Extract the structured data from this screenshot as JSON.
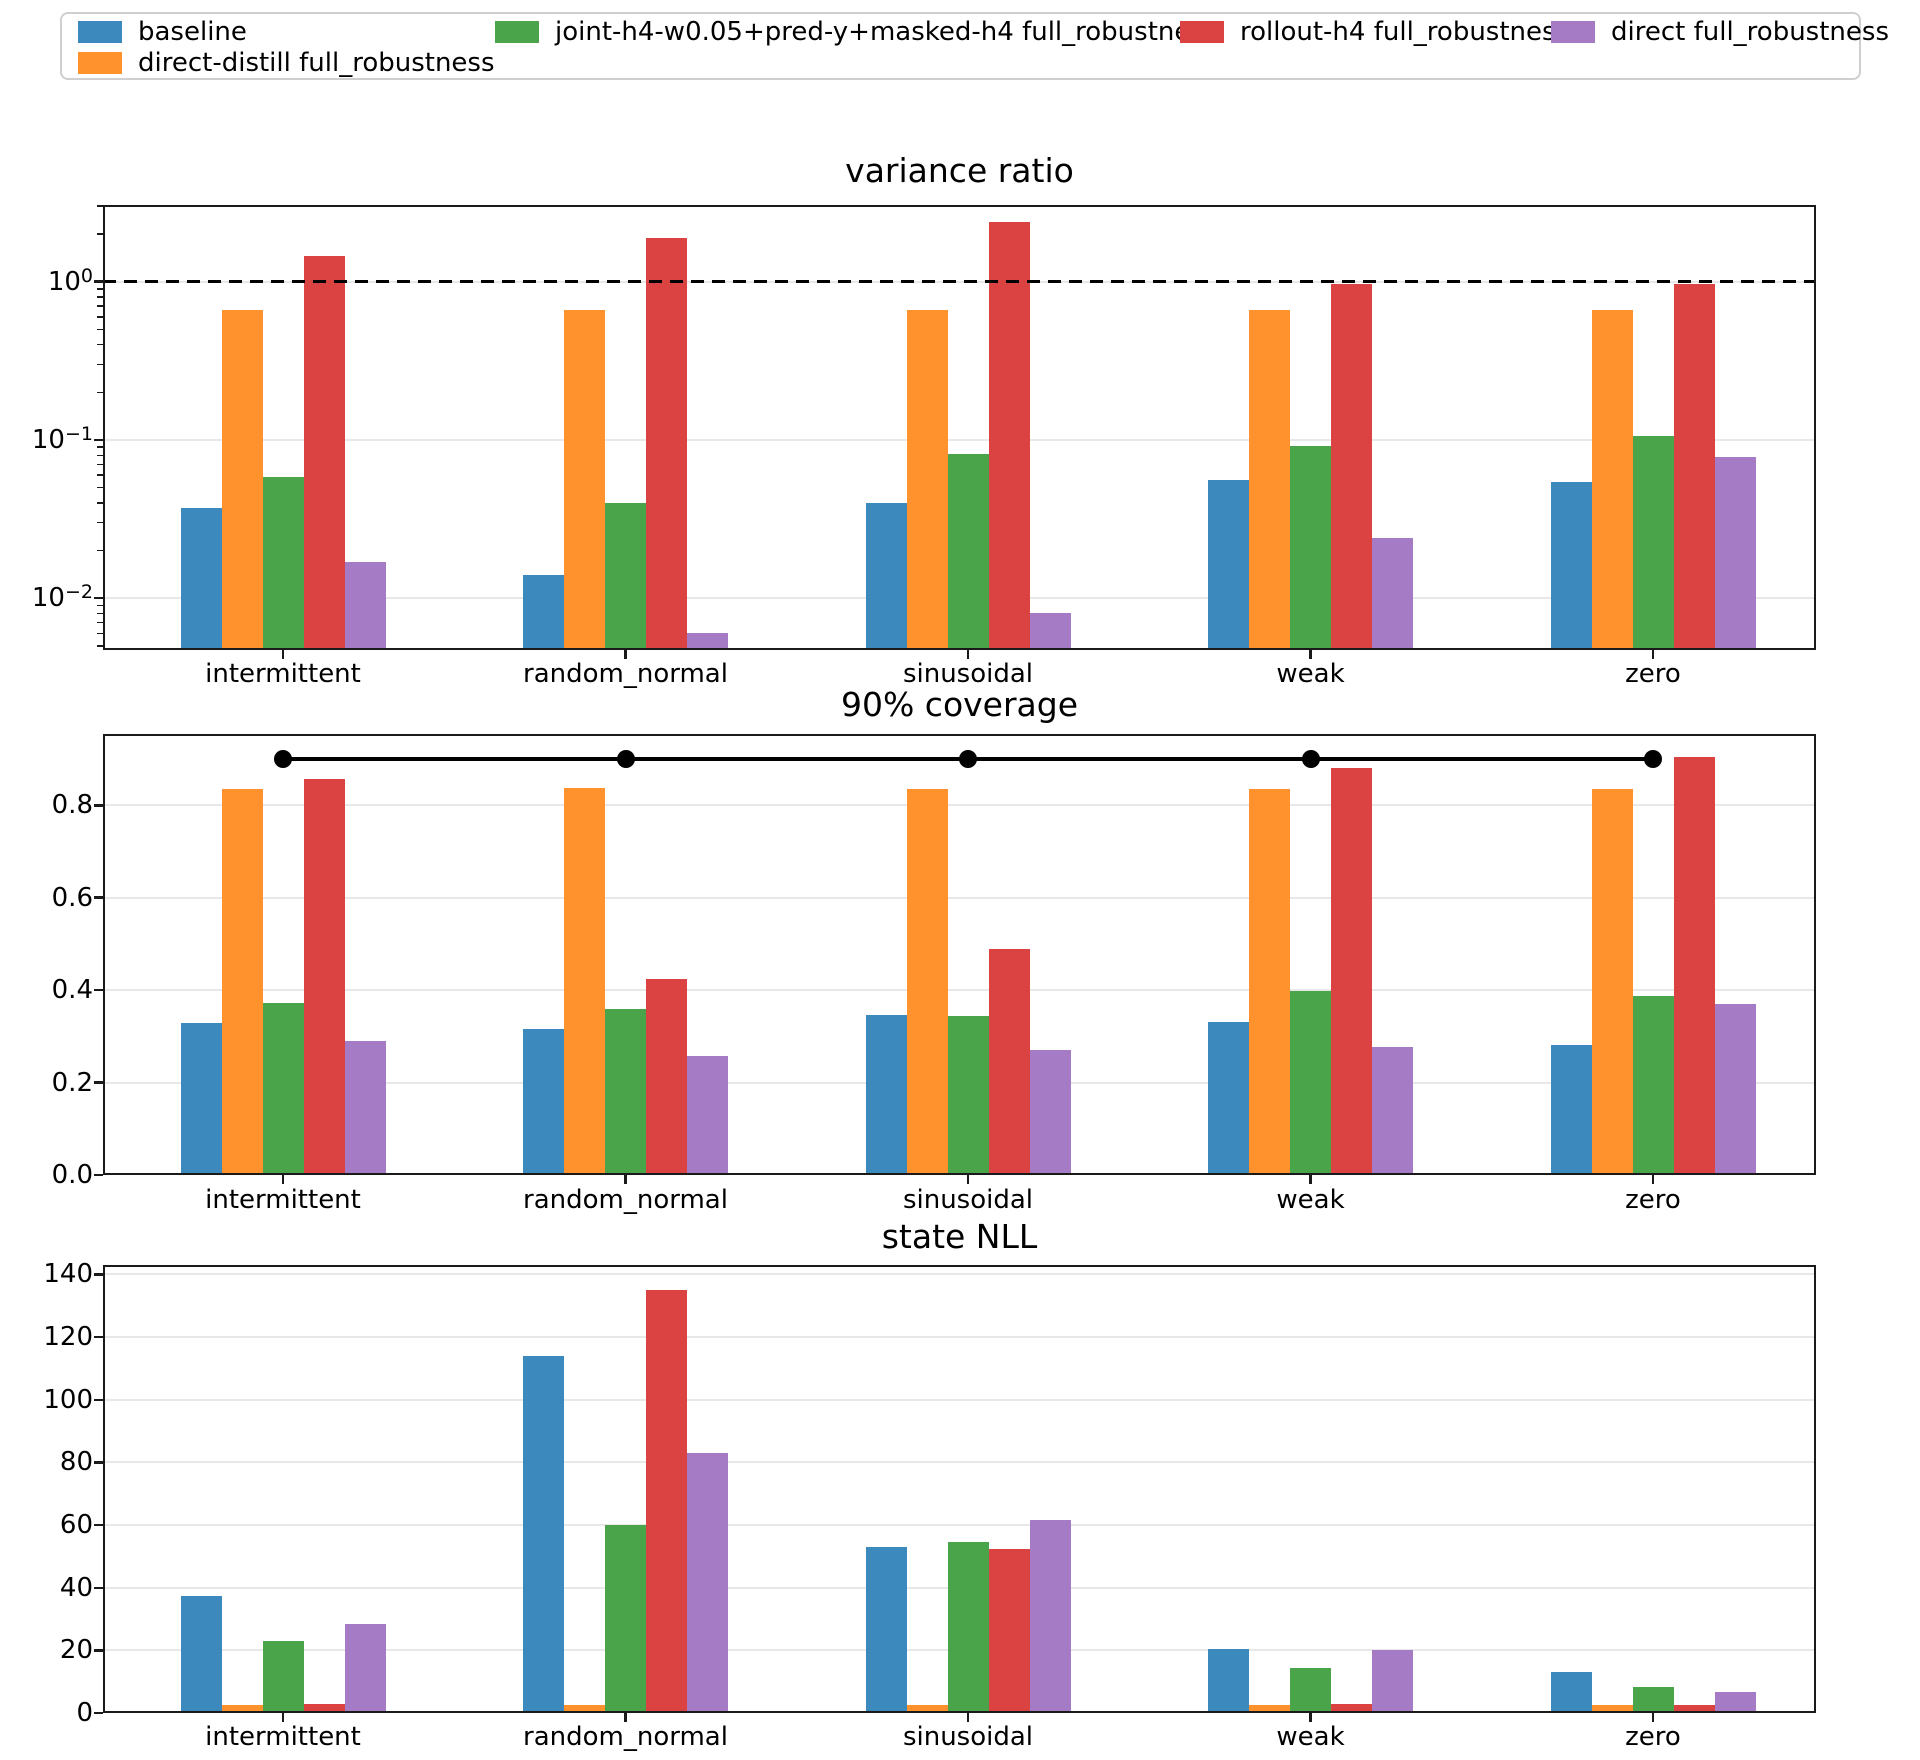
{
  "legend": {
    "items": [
      {
        "label": "baseline",
        "color": "#3c89be"
      },
      {
        "label": "direct-distill full_robustness",
        "color": "#ff922c"
      },
      {
        "label": "joint-h4-w0.05+pred-y+masked-h4 full_robustness",
        "color": "#4aa54a"
      },
      {
        "label": "rollout-h4 full_robustness",
        "color": "#db4343"
      },
      {
        "label": "direct full_robustness",
        "color": "#a57bc6"
      }
    ]
  },
  "chart_data": [
    {
      "type": "bar",
      "title": "variance ratio",
      "yscale": "log",
      "ylim": [
        0.0047,
        3.05
      ],
      "grid": true,
      "legend_position": "top",
      "categories": [
        "intermittent",
        "random_normal",
        "sinusoidal",
        "weak",
        "zero"
      ],
      "yticks": [
        {
          "value": 1,
          "label": "10",
          "sup": "0"
        },
        {
          "value": 0.1,
          "label": "10",
          "sup": "−1"
        },
        {
          "value": 0.01,
          "label": "10",
          "sup": "−2"
        }
      ],
      "series": [
        {
          "name": "baseline",
          "color": "#3c89be",
          "values": [
            0.037,
            0.014,
            0.04,
            0.056,
            0.054
          ]
        },
        {
          "name": "direct-distill full_robustness",
          "color": "#ff922c",
          "values": [
            0.66,
            0.665,
            0.66,
            0.665,
            0.66
          ]
        },
        {
          "name": "joint-h4-w0.05+pred-y+masked-h4 full_robustness",
          "color": "#4aa54a",
          "values": [
            0.058,
            0.04,
            0.081,
            0.091,
            0.106
          ]
        },
        {
          "name": "rollout-h4 full_robustness",
          "color": "#db4343",
          "values": [
            1.45,
            1.9,
            2.4,
            0.97,
            0.97
          ]
        },
        {
          "name": "direct full_robustness",
          "color": "#a57bc6",
          "values": [
            0.017,
            0.006,
            0.008,
            0.024,
            0.078
          ]
        }
      ],
      "ref_line": {
        "value": 1.0,
        "style": "dashed",
        "color": "#000000"
      }
    },
    {
      "type": "bar",
      "title": "90% coverage",
      "yscale": "linear",
      "ylim": [
        0,
        0.954
      ],
      "grid": true,
      "categories": [
        "intermittent",
        "random_normal",
        "sinusoidal",
        "weak",
        "zero"
      ],
      "yticks": [
        {
          "value": 0.0,
          "label": "0.0"
        },
        {
          "value": 0.2,
          "label": "0.2"
        },
        {
          "value": 0.4,
          "label": "0.4"
        },
        {
          "value": 0.6,
          "label": "0.6"
        },
        {
          "value": 0.8,
          "label": "0.8"
        }
      ],
      "series": [
        {
          "name": "baseline",
          "color": "#3c89be",
          "values": [
            0.33,
            0.317,
            0.347,
            0.332,
            0.282
          ]
        },
        {
          "name": "direct-distill full_robustness",
          "color": "#ff922c",
          "values": [
            0.835,
            0.838,
            0.836,
            0.836,
            0.836
          ]
        },
        {
          "name": "joint-h4-w0.05+pred-y+masked-h4 full_robustness",
          "color": "#4aa54a",
          "values": [
            0.373,
            0.359,
            0.343,
            0.398,
            0.388
          ]
        },
        {
          "name": "rollout-h4 full_robustness",
          "color": "#db4343",
          "values": [
            0.856,
            0.425,
            0.49,
            0.881,
            0.905
          ]
        },
        {
          "name": "direct full_robustness",
          "color": "#a57bc6",
          "values": [
            0.29,
            0.257,
            0.27,
            0.278,
            0.371
          ]
        }
      ],
      "target_line": {
        "value": 0.9,
        "color": "#000000",
        "marker": "circle",
        "marker_at_each_category": true
      }
    },
    {
      "type": "bar",
      "title": "state NLL",
      "yscale": "linear",
      "ylim": [
        0,
        143
      ],
      "grid": true,
      "categories": [
        "intermittent",
        "random_normal",
        "sinusoidal",
        "weak",
        "zero"
      ],
      "yticks": [
        {
          "value": 0,
          "label": "0"
        },
        {
          "value": 20,
          "label": "20"
        },
        {
          "value": 40,
          "label": "40"
        },
        {
          "value": 60,
          "label": "60"
        },
        {
          "value": 80,
          "label": "80"
        },
        {
          "value": 100,
          "label": "100"
        },
        {
          "value": 120,
          "label": "120"
        },
        {
          "value": 140,
          "label": "140"
        }
      ],
      "series": [
        {
          "name": "baseline",
          "color": "#3c89be",
          "values": [
            37.5,
            114,
            53,
            20.5,
            13
          ]
        },
        {
          "name": "direct-distill full_robustness",
          "color": "#ff922c",
          "values": [
            2.5,
            2.5,
            2.5,
            2.5,
            2.5
          ]
        },
        {
          "name": "joint-h4-w0.05+pred-y+masked-h4 full_robustness",
          "color": "#4aa54a",
          "values": [
            23,
            60,
            54.5,
            14.5,
            8.3
          ]
        },
        {
          "name": "rollout-h4 full_robustness",
          "color": "#db4343",
          "values": [
            3,
            135,
            52.5,
            2.8,
            2.5
          ]
        },
        {
          "name": "direct full_robustness",
          "color": "#a57bc6",
          "values": [
            28.5,
            83,
            61.5,
            20,
            6.8
          ]
        }
      ]
    }
  ]
}
